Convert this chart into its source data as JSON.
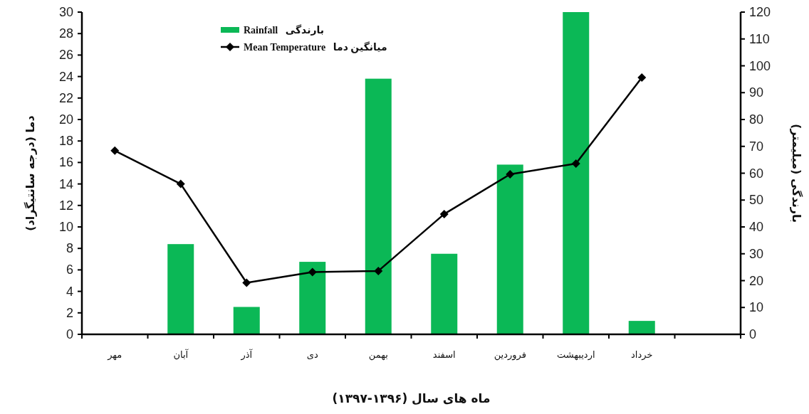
{
  "chart_data": {
    "type": "bar",
    "categories": [
      "مهر",
      "آبان",
      "آذر",
      "دی",
      "بهمن",
      "اسفند",
      "فروردین",
      "اردیبهشت",
      "خرداد",
      null
    ],
    "series": [
      {
        "name": "Rainfall   بارندگی",
        "axis": "y2",
        "color": "#0bb856",
        "values": [
          0,
          33.6,
          10.2,
          27,
          95.2,
          30,
          63.2,
          120,
          5,
          null
        ]
      },
      {
        "name": "Mean Temperature   میانگین دما",
        "type": "line",
        "color": "#000000",
        "values": [
          17.1,
          14.0,
          4.8,
          5.8,
          5.9,
          11.2,
          14.9,
          15.9,
          23.9,
          null
        ]
      }
    ],
    "xlabel": "ماه های سال (۱۳۹۶-۱۳۹۷)",
    "ylabel": "دما (درجه سانتیگراد)",
    "y2label": "بارندگی (میلیمتر)",
    "ylim": [
      0,
      30
    ],
    "yticks": [
      0,
      2,
      4,
      6,
      8,
      10,
      12,
      14,
      16,
      18,
      20,
      22,
      24,
      26,
      28,
      30
    ],
    "y2lim": [
      0,
      120
    ],
    "y2ticks": [
      0,
      10,
      20,
      30,
      40,
      50,
      60,
      70,
      80,
      90,
      100,
      110,
      120
    ],
    "marker": "diamond",
    "line_style": "solid",
    "legend": "top",
    "grid": false
  }
}
